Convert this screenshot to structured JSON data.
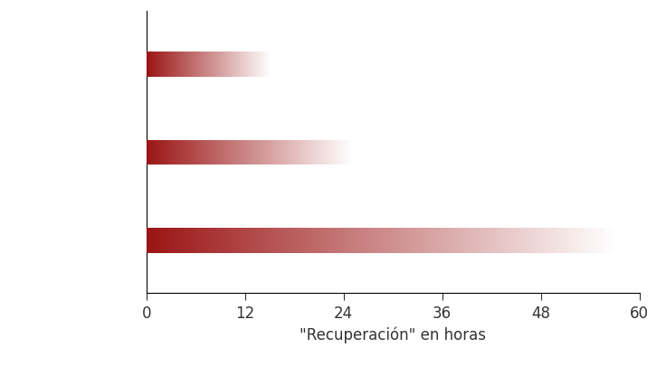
{
  "chart_data": {
    "type": "bar",
    "orientation": "horizontal",
    "categories": [
      null,
      null,
      null
    ],
    "values": [
      15,
      25,
      57
    ],
    "color": "#9b1515",
    "x_label": "\"Recuperación\" en horas",
    "xlim": [
      0,
      60
    ],
    "xticks": [
      0,
      12,
      24,
      36,
      48,
      60
    ],
    "grid": false,
    "tick_labels": "x"
  }
}
